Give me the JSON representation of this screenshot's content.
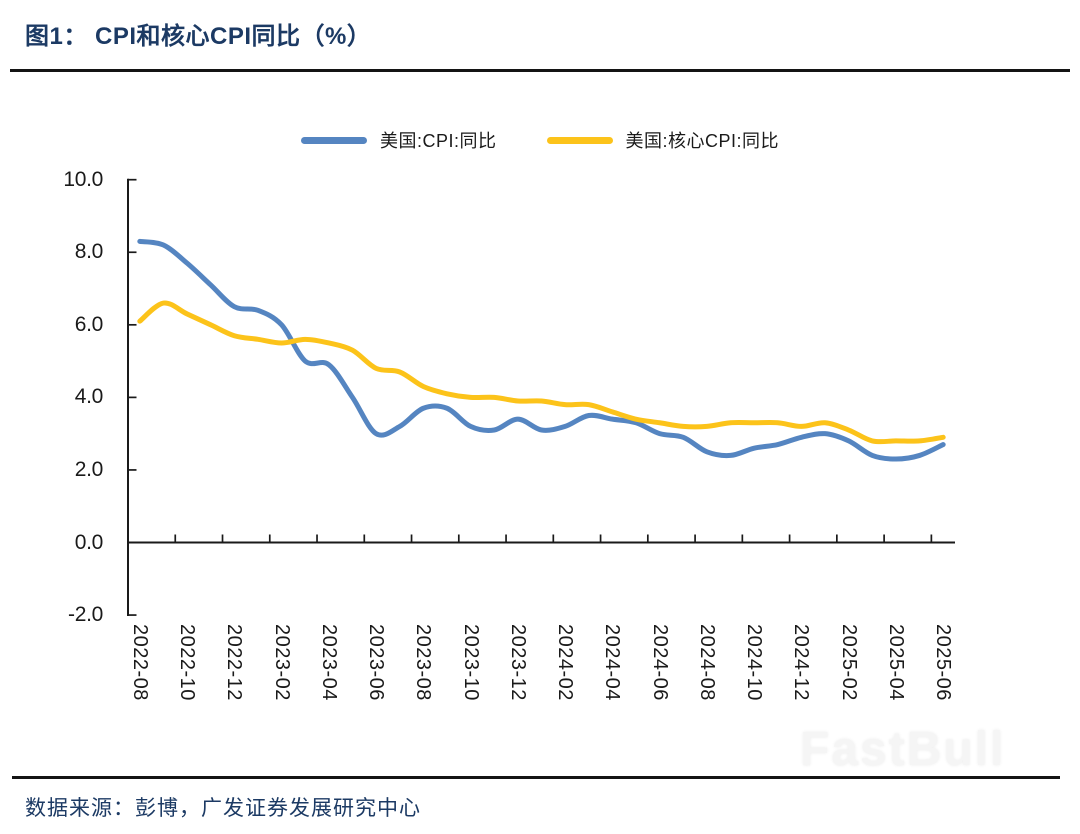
{
  "page": {
    "title": "图1： CPI和核心CPI同比（%）",
    "source_note": "数据来源：彭博，广发证券发展研究中心",
    "watermark": "FastBull"
  },
  "chart_data": {
    "type": "line",
    "title": "图1： CPI和核心CPI同比（%）",
    "smoothed": true,
    "grid": false,
    "legend_position": "top-center",
    "axis_color": "#1a1a1a",
    "ylim": [
      -2.0,
      10.0
    ],
    "y_ticks": [
      10.0,
      8.0,
      6.0,
      4.0,
      2.0,
      0.0,
      -2.0
    ],
    "x_tick_labels": [
      "2022-08",
      "2022-10",
      "2022-12",
      "2023-02",
      "2023-04",
      "2023-06",
      "2023-08",
      "2023-10",
      "2023-12",
      "2024-02",
      "2024-04",
      "2024-06",
      "2024-08",
      "2024-10",
      "2024-12",
      "2025-02",
      "2025-04",
      "2025-06"
    ],
    "categories": [
      "2022-08",
      "2022-09",
      "2022-10",
      "2022-11",
      "2022-12",
      "2023-01",
      "2023-02",
      "2023-03",
      "2023-04",
      "2023-05",
      "2023-06",
      "2023-07",
      "2023-08",
      "2023-09",
      "2023-10",
      "2023-11",
      "2023-12",
      "2024-01",
      "2024-02",
      "2024-03",
      "2024-04",
      "2024-05",
      "2024-06",
      "2024-07",
      "2024-08",
      "2024-09",
      "2024-10",
      "2024-11",
      "2024-12",
      "2025-01",
      "2025-02",
      "2025-03",
      "2025-04",
      "2025-05",
      "2025-06"
    ],
    "series": [
      {
        "name": "美国:CPI:同比",
        "color": "#5585C1",
        "values": [
          8.3,
          8.2,
          7.7,
          7.1,
          6.5,
          6.4,
          6.0,
          5.0,
          4.9,
          4.0,
          3.0,
          3.2,
          3.7,
          3.7,
          3.2,
          3.1,
          3.4,
          3.1,
          3.2,
          3.5,
          3.4,
          3.3,
          3.0,
          2.9,
          2.5,
          2.4,
          2.6,
          2.7,
          2.9,
          3.0,
          2.8,
          2.4,
          2.3,
          2.4,
          2.7
        ]
      },
      {
        "name": "美国:核心CPI:同比",
        "color": "#FCC31A",
        "values": [
          6.1,
          6.6,
          6.3,
          6.0,
          5.7,
          5.6,
          5.5,
          5.6,
          5.5,
          5.3,
          4.8,
          4.7,
          4.3,
          4.1,
          4.0,
          4.0,
          3.9,
          3.9,
          3.8,
          3.8,
          3.6,
          3.4,
          3.3,
          3.2,
          3.2,
          3.3,
          3.3,
          3.3,
          3.2,
          3.3,
          3.1,
          2.8,
          2.8,
          2.8,
          2.9
        ]
      }
    ]
  }
}
